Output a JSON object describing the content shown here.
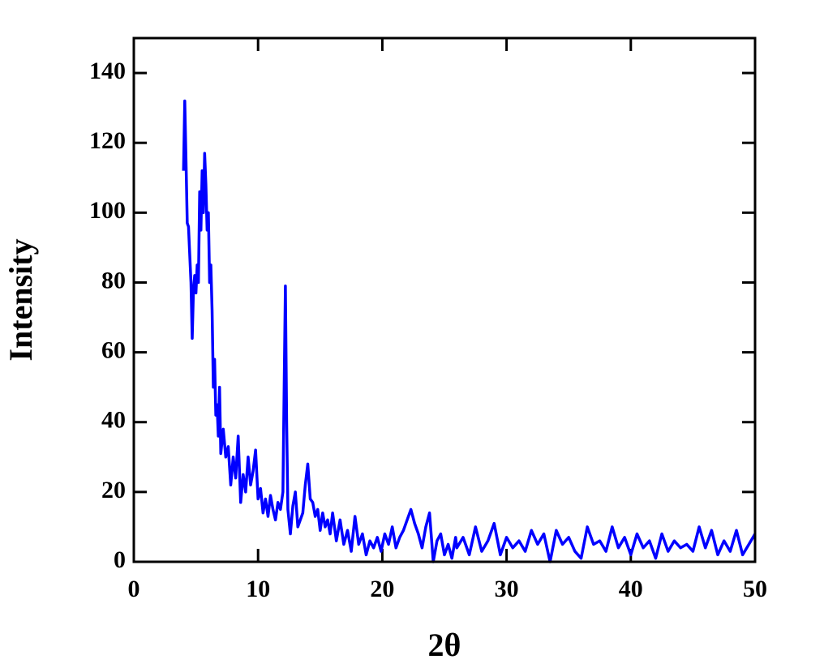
{
  "chart_data": {
    "type": "line",
    "xlabel": "2θ",
    "ylabel": "Intensity",
    "x": [
      4.0,
      4.1,
      4.2,
      4.3,
      4.4,
      4.5,
      4.6,
      4.7,
      4.8,
      4.9,
      5.0,
      5.1,
      5.2,
      5.3,
      5.4,
      5.5,
      5.6,
      5.7,
      5.8,
      5.9,
      6.0,
      6.1,
      6.2,
      6.3,
      6.4,
      6.5,
      6.6,
      6.7,
      6.8,
      6.9,
      7.0,
      7.2,
      7.4,
      7.6,
      7.8,
      8.0,
      8.2,
      8.4,
      8.6,
      8.8,
      9.0,
      9.2,
      9.4,
      9.6,
      9.8,
      10.0,
      10.2,
      10.4,
      10.6,
      10.8,
      11.0,
      11.2,
      11.4,
      11.6,
      11.8,
      12.0,
      12.1,
      12.2,
      12.3,
      12.4,
      12.6,
      12.8,
      13.0,
      13.2,
      13.4,
      13.6,
      13.8,
      14.0,
      14.2,
      14.4,
      14.6,
      14.8,
      15.0,
      15.2,
      15.4,
      15.6,
      15.8,
      16.0,
      16.3,
      16.6,
      16.9,
      17.2,
      17.5,
      17.8,
      18.1,
      18.4,
      18.7,
      19.0,
      19.3,
      19.6,
      19.9,
      20.2,
      20.5,
      20.8,
      21.1,
      21.4,
      21.7,
      22.0,
      22.3,
      22.6,
      22.9,
      23.2,
      23.5,
      23.8,
      24.1,
      24.4,
      24.7,
      25.0,
      25.3,
      25.6,
      25.9,
      26.0,
      26.5,
      27.0,
      27.5,
      28.0,
      28.5,
      29.0,
      29.5,
      30.0,
      30.5,
      31.0,
      31.5,
      32.0,
      32.5,
      33.0,
      33.5,
      34.0,
      34.5,
      35.0,
      35.5,
      36.0,
      36.5,
      37.0,
      37.5,
      38.0,
      38.5,
      39.0,
      39.5,
      40.0,
      40.5,
      41.0,
      41.5,
      42.0,
      42.5,
      43.0,
      43.5,
      44.0,
      44.5,
      45.0,
      45.5,
      46.0,
      46.5,
      47.0,
      47.5,
      48.0,
      48.5,
      49.0,
      49.5,
      50.0
    ],
    "values": [
      112,
      132,
      115,
      97,
      96,
      88,
      80,
      64,
      78,
      82,
      77,
      85,
      80,
      106,
      95,
      112,
      100,
      117,
      108,
      95,
      100,
      80,
      85,
      72,
      50,
      58,
      42,
      45,
      36,
      50,
      31,
      38,
      30,
      33,
      22,
      30,
      24,
      36,
      17,
      25,
      20,
      30,
      22,
      26,
      32,
      18,
      21,
      14,
      18,
      13,
      19,
      15,
      12,
      17,
      15,
      20,
      50,
      79,
      40,
      15,
      8,
      16,
      20,
      10,
      12,
      14,
      22,
      28,
      18,
      17,
      13,
      15,
      9,
      14,
      10,
      12,
      8,
      14,
      6,
      12,
      5,
      9,
      3,
      13,
      5,
      8,
      2,
      6,
      4,
      7,
      3,
      8,
      5,
      10,
      4,
      7,
      9,
      12,
      15,
      11,
      8,
      4,
      10,
      14,
      0,
      6,
      8,
      2,
      5,
      1,
      7,
      4,
      7,
      2,
      10,
      3,
      6,
      11,
      2,
      7,
      4,
      6,
      3,
      9,
      5,
      8,
      0,
      9,
      5,
      7,
      3,
      1,
      10,
      5,
      6,
      3,
      10,
      4,
      7,
      2,
      8,
      4,
      6,
      1,
      8,
      3,
      6,
      4,
      5,
      3,
      10,
      4,
      9,
      2,
      6,
      3,
      9,
      2,
      5,
      8
    ],
    "color": "#0000ff",
    "xlim": [
      0,
      50
    ],
    "xticks": [
      0,
      10,
      20,
      30,
      40,
      50
    ],
    "ylim": [
      0,
      150
    ],
    "yticks": [
      0,
      20,
      40,
      60,
      80,
      100,
      120,
      140
    ]
  }
}
